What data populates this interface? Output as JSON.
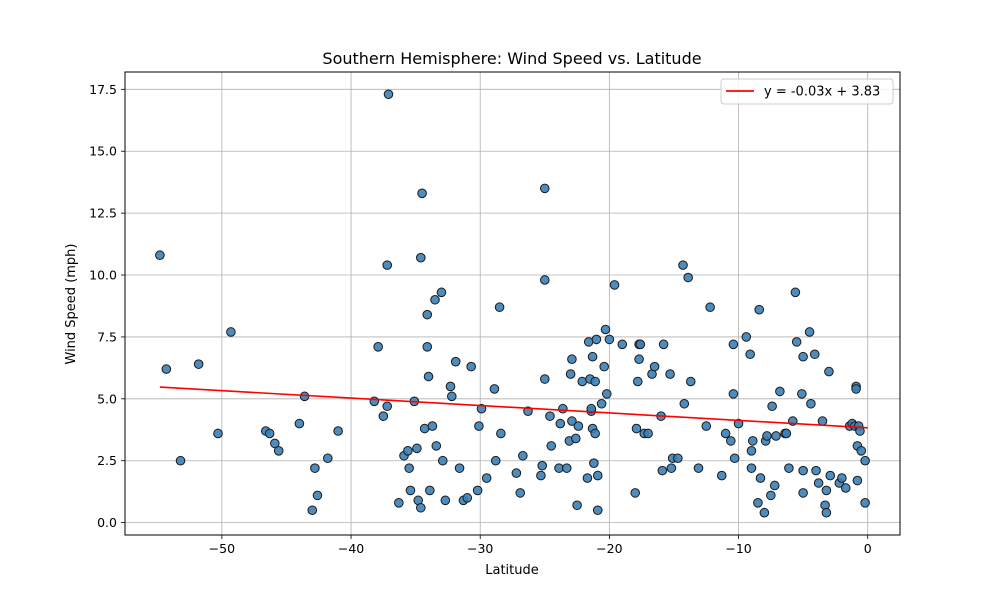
{
  "chart_data": {
    "type": "scatter",
    "title": "Southern Hemisphere: Wind Speed vs. Latitude",
    "xlabel": "Latitude",
    "ylabel": "Wind Speed (mph)",
    "xlim": [
      -57.5,
      2.5
    ],
    "ylim": [
      -0.5,
      18.2
    ],
    "xticks": [
      -50,
      -40,
      -30,
      -20,
      -10,
      0
    ],
    "xtick_labels": [
      "−50",
      "−40",
      "−30",
      "−20",
      "−10",
      "0"
    ],
    "yticks": [
      0,
      2.5,
      5,
      7.5,
      10,
      12.5,
      15,
      17.5
    ],
    "ytick_labels": [
      "0.0",
      "2.5",
      "5.0",
      "7.5",
      "10.0",
      "12.5",
      "15.0",
      "17.5"
    ],
    "grid": true,
    "legend_position": "top-right",
    "colors": {
      "points": "#3a80b6",
      "point_edge": "#1a1a1a",
      "regression": "#ff0000"
    },
    "regression": {
      "label": "y = -0.03x + 3.83",
      "slope": -0.03,
      "intercept": 3.83,
      "x_range": [
        -54.8,
        0
      ]
    },
    "points": [
      [
        -54.8,
        10.8
      ],
      [
        -54.3,
        6.2
      ],
      [
        -53.2,
        2.5
      ],
      [
        -51.8,
        6.4
      ],
      [
        -50.3,
        3.6
      ],
      [
        -49.3,
        7.7
      ],
      [
        -46.6,
        3.7
      ],
      [
        -46.3,
        3.6
      ],
      [
        -45.9,
        3.2
      ],
      [
        -45.6,
        2.9
      ],
      [
        -44.0,
        4.0
      ],
      [
        -43.6,
        5.1
      ],
      [
        -43.0,
        0.5
      ],
      [
        -42.8,
        2.2
      ],
      [
        -42.6,
        1.1
      ],
      [
        -41.8,
        2.6
      ],
      [
        -41.0,
        3.7
      ],
      [
        -38.2,
        4.9
      ],
      [
        -37.9,
        7.1
      ],
      [
        -37.5,
        4.3
      ],
      [
        -37.2,
        10.4
      ],
      [
        -37.1,
        17.3
      ],
      [
        -37.2,
        4.7
      ],
      [
        -36.3,
        0.8
      ],
      [
        -35.9,
        2.7
      ],
      [
        -35.6,
        2.9
      ],
      [
        -35.5,
        2.2
      ],
      [
        -35.4,
        1.3
      ],
      [
        -35.1,
        4.9
      ],
      [
        -34.9,
        3.0
      ],
      [
        -34.8,
        0.9
      ],
      [
        -34.6,
        10.7
      ],
      [
        -34.5,
        13.3
      ],
      [
        -34.6,
        0.6
      ],
      [
        -34.3,
        3.8
      ],
      [
        -34.1,
        7.1
      ],
      [
        -34.1,
        8.4
      ],
      [
        -34.0,
        5.9
      ],
      [
        -33.9,
        1.3
      ],
      [
        -33.7,
        3.9
      ],
      [
        -33.5,
        9.0
      ],
      [
        -33.4,
        3.1
      ],
      [
        -33.0,
        9.3
      ],
      [
        -32.9,
        2.5
      ],
      [
        -32.7,
        0.9
      ],
      [
        -32.3,
        5.5
      ],
      [
        -32.2,
        5.1
      ],
      [
        -31.9,
        6.5
      ],
      [
        -31.6,
        2.2
      ],
      [
        -31.3,
        0.9
      ],
      [
        -31.0,
        1.0
      ],
      [
        -30.7,
        6.3
      ],
      [
        -30.2,
        1.3
      ],
      [
        -30.1,
        3.9
      ],
      [
        -29.9,
        4.6
      ],
      [
        -29.5,
        1.8
      ],
      [
        -28.9,
        5.4
      ],
      [
        -28.8,
        2.5
      ],
      [
        -28.5,
        8.7
      ],
      [
        -28.4,
        3.6
      ],
      [
        -27.2,
        2.0
      ],
      [
        -26.9,
        1.2
      ],
      [
        -26.7,
        2.7
      ],
      [
        -26.3,
        4.5
      ],
      [
        -25.3,
        1.9
      ],
      [
        -25.2,
        2.3
      ],
      [
        -25.0,
        13.5
      ],
      [
        -25.0,
        9.8
      ],
      [
        -25.0,
        5.8
      ],
      [
        -24.6,
        4.3
      ],
      [
        -24.5,
        3.1
      ],
      [
        -23.9,
        2.2
      ],
      [
        -23.8,
        4.0
      ],
      [
        -23.6,
        4.6
      ],
      [
        -23.3,
        2.2
      ],
      [
        -23.1,
        3.3
      ],
      [
        -23.0,
        6.0
      ],
      [
        -22.9,
        6.6
      ],
      [
        -22.9,
        4.1
      ],
      [
        -22.6,
        3.4
      ],
      [
        -22.5,
        0.7
      ],
      [
        -22.4,
        3.9
      ],
      [
        -22.1,
        5.7
      ],
      [
        -21.7,
        1.8
      ],
      [
        -21.6,
        7.3
      ],
      [
        -21.5,
        5.8
      ],
      [
        -21.4,
        4.5
      ],
      [
        -21.4,
        4.6
      ],
      [
        -21.3,
        3.8
      ],
      [
        -21.3,
        6.7
      ],
      [
        -21.1,
        3.6
      ],
      [
        -21.2,
        2.4
      ],
      [
        -21.1,
        5.7
      ],
      [
        -21.0,
        7.4
      ],
      [
        -20.9,
        1.9
      ],
      [
        -20.9,
        0.5
      ],
      [
        -20.6,
        4.8
      ],
      [
        -20.4,
        6.3
      ],
      [
        -20.3,
        7.8
      ],
      [
        -20.2,
        5.2
      ],
      [
        -20.0,
        7.4
      ],
      [
        -19.6,
        9.6
      ],
      [
        -19.0,
        7.2
      ],
      [
        -18.0,
        1.2
      ],
      [
        -17.9,
        3.8
      ],
      [
        -17.8,
        5.7
      ],
      [
        -17.7,
        7.2
      ],
      [
        -17.7,
        6.6
      ],
      [
        -17.6,
        7.2
      ],
      [
        -17.3,
        3.6
      ],
      [
        -17.0,
        3.6
      ],
      [
        -16.7,
        6.0
      ],
      [
        -16.5,
        6.3
      ],
      [
        -16.0,
        4.3
      ],
      [
        -15.9,
        2.1
      ],
      [
        -15.8,
        7.2
      ],
      [
        -15.3,
        6.0
      ],
      [
        -15.2,
        2.2
      ],
      [
        -15.1,
        2.6
      ],
      [
        -14.7,
        2.6
      ],
      [
        -14.3,
        10.4
      ],
      [
        -14.2,
        4.8
      ],
      [
        -13.9,
        9.9
      ],
      [
        -13.7,
        5.7
      ],
      [
        -13.1,
        2.2
      ],
      [
        -12.5,
        3.9
      ],
      [
        -12.2,
        8.7
      ],
      [
        -11.3,
        1.9
      ],
      [
        -11.0,
        3.6
      ],
      [
        -10.6,
        3.3
      ],
      [
        -10.4,
        5.2
      ],
      [
        -10.4,
        7.2
      ],
      [
        -10.3,
        2.6
      ],
      [
        -10.0,
        4.0
      ],
      [
        -9.4,
        7.5
      ],
      [
        -9.1,
        6.8
      ],
      [
        -9.0,
        2.9
      ],
      [
        -9.0,
        2.2
      ],
      [
        -8.9,
        3.3
      ],
      [
        -8.5,
        0.8
      ],
      [
        -8.4,
        8.6
      ],
      [
        -8.3,
        1.8
      ],
      [
        -8.0,
        0.4
      ],
      [
        -7.9,
        3.3
      ],
      [
        -7.8,
        3.5
      ],
      [
        -7.5,
        1.1
      ],
      [
        -7.4,
        4.7
      ],
      [
        -7.2,
        1.5
      ],
      [
        -7.1,
        3.5
      ],
      [
        -6.8,
        5.3
      ],
      [
        -6.4,
        3.6
      ],
      [
        -6.3,
        3.6
      ],
      [
        -6.1,
        2.2
      ],
      [
        -5.8,
        4.1
      ],
      [
        -5.6,
        9.3
      ],
      [
        -5.5,
        7.3
      ],
      [
        -5.1,
        5.2
      ],
      [
        -5.0,
        1.2
      ],
      [
        -5.0,
        2.1
      ],
      [
        -5.0,
        6.7
      ],
      [
        -4.5,
        7.7
      ],
      [
        -4.4,
        4.8
      ],
      [
        -4.1,
        6.8
      ],
      [
        -4.0,
        2.1
      ],
      [
        -3.8,
        1.6
      ],
      [
        -3.5,
        4.1
      ],
      [
        -3.3,
        0.7
      ],
      [
        -3.2,
        0.4
      ],
      [
        -3.2,
        1.3
      ],
      [
        -3.0,
        6.1
      ],
      [
        -2.9,
        1.9
      ],
      [
        -2.2,
        1.6
      ],
      [
        -2.0,
        1.8
      ],
      [
        -1.7,
        1.4
      ],
      [
        -1.4,
        3.9
      ],
      [
        -1.2,
        4.0
      ],
      [
        -1.0,
        3.9
      ],
      [
        -0.9,
        5.5
      ],
      [
        -0.9,
        5.4
      ],
      [
        -0.8,
        3.1
      ],
      [
        -0.8,
        1.7
      ],
      [
        -0.7,
        3.9
      ],
      [
        -0.6,
        3.7
      ],
      [
        -0.5,
        2.9
      ],
      [
        -0.2,
        2.5
      ],
      [
        -0.2,
        0.8
      ]
    ]
  }
}
